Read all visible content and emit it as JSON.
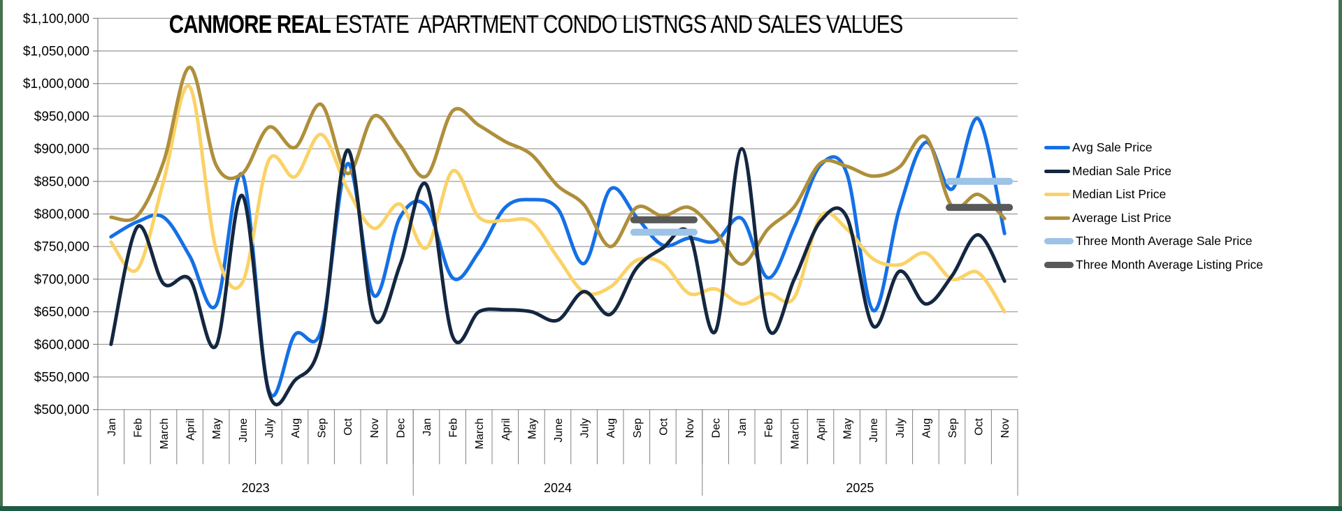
{
  "title": {
    "bold": "CANMORE REAL",
    "rest": "ESTATE  APARTMENT CONDO LISTNGS AND SALES VALUES"
  },
  "colors": {
    "avg_sale": "#1470E6",
    "median_sale": "#142740",
    "median_list": "#FBD267",
    "avg_list": "#AF8F3B",
    "three_month_sale": "#9DC3E6",
    "three_month_listing": "#595959",
    "gridline": "#A6A6A6",
    "axis": "#808080",
    "border_side": "#47714F",
    "border_bottom": "#1E5B44"
  },
  "chart_data": {
    "type": "line",
    "title": "CANMORE REAL ESTATE  APARTMENT CONDO LISTNGS AND SALES VALUES",
    "y_axis": {
      "min": 500000,
      "max": 1100000,
      "step": 50000,
      "tick_prefix": "$",
      "grid": true
    },
    "year_groups": [
      {
        "label": "2023",
        "months": [
          "Jan",
          "Feb",
          "March",
          "April",
          "May",
          "June",
          "July",
          "Aug",
          "Sep",
          "Oct",
          "Nov",
          "Dec"
        ]
      },
      {
        "label": "2024",
        "months": [
          "Jan",
          "Feb",
          "March",
          "April",
          "May",
          "June",
          "July",
          "Aug",
          "Sep",
          "Oct",
          "Nov"
        ]
      },
      {
        "label": "2025",
        "months": [
          "Dec",
          "Jan",
          "Feb",
          "March",
          "April",
          "May",
          "June",
          "July",
          "Aug",
          "Sep",
          "Oct",
          "Nov"
        ]
      }
    ],
    "series": [
      {
        "name": "Avg Sale Price",
        "color": "#1470E6",
        "values": [
          765000,
          788000,
          795000,
          735000,
          660000,
          860000,
          530000,
          615000,
          622000,
          877000,
          675000,
          795000,
          812000,
          702000,
          742000,
          810000,
          822000,
          808000,
          724000,
          838000,
          795000,
          752000,
          763000,
          758000,
          793000,
          702000,
          780000,
          875000,
          862000,
          652000,
          808000,
          910000,
          838000,
          946000,
          770000
        ]
      },
      {
        "name": "Median Sale Price",
        "color": "#142740",
        "values": [
          600000,
          780000,
          693000,
          700000,
          598000,
          828000,
          527000,
          545000,
          608000,
          898000,
          640000,
          722000,
          845000,
          612000,
          650000,
          653000,
          650000,
          637000,
          681000,
          646000,
          717000,
          748000,
          770000,
          620000,
          900000,
          625000,
          700000,
          789000,
          795000,
          628000,
          712000,
          662000,
          705000,
          768000,
          697000
        ]
      },
      {
        "name": "Median List Price",
        "color": "#FBD267",
        "values": [
          757000,
          715000,
          850000,
          995000,
          745000,
          695000,
          882000,
          857000,
          922000,
          838000,
          778000,
          815000,
          748000,
          866000,
          795000,
          790000,
          788000,
          733000,
          680000,
          688000,
          729000,
          724000,
          678000,
          685000,
          662000,
          678000,
          672000,
          796000,
          777000,
          731000,
          722000,
          740000,
          700000,
          710000,
          650000
        ]
      },
      {
        "name": "Average List Price",
        "color": "#AF8F3B",
        "values": [
          795000,
          797000,
          880000,
          1025000,
          875000,
          862000,
          933000,
          902000,
          968000,
          862000,
          950000,
          905000,
          858000,
          958000,
          936000,
          911000,
          891000,
          843000,
          814000,
          750000,
          810000,
          797000,
          810000,
          773000,
          723000,
          777000,
          811000,
          878000,
          873000,
          858000,
          872000,
          918000,
          812000,
          830000,
          793000
        ]
      }
    ],
    "overlays": [
      {
        "name": "Three Month Average Sale Price",
        "color": "#9DC3E6",
        "segments": [
          {
            "start_month_index": 20,
            "end_month_index": 22,
            "value": 772000
          },
          {
            "start_month_index": 32,
            "end_month_index": 34,
            "value": 850000
          }
        ]
      },
      {
        "name": "Three Month Average Listing Price",
        "color": "#595959",
        "segments": [
          {
            "start_month_index": 20,
            "end_month_index": 22,
            "value": 791000
          },
          {
            "start_month_index": 32,
            "end_month_index": 34,
            "value": 810000
          }
        ]
      }
    ],
    "legend_position": "right"
  },
  "legend": {
    "items": [
      {
        "label": "Avg Sale Price",
        "color": "#1470E6",
        "kind": "line"
      },
      {
        "label": "Median Sale Price",
        "color": "#142740",
        "kind": "line"
      },
      {
        "label": "Median List Price",
        "color": "#FBD267",
        "kind": "line"
      },
      {
        "label": "Average List Price",
        "color": "#AF8F3B",
        "kind": "line"
      },
      {
        "label": "Three Month Average Sale Price",
        "color": "#9DC3E6",
        "kind": "bar"
      },
      {
        "label": "Three Month Average Listing Price",
        "color": "#595959",
        "kind": "bar"
      }
    ]
  }
}
